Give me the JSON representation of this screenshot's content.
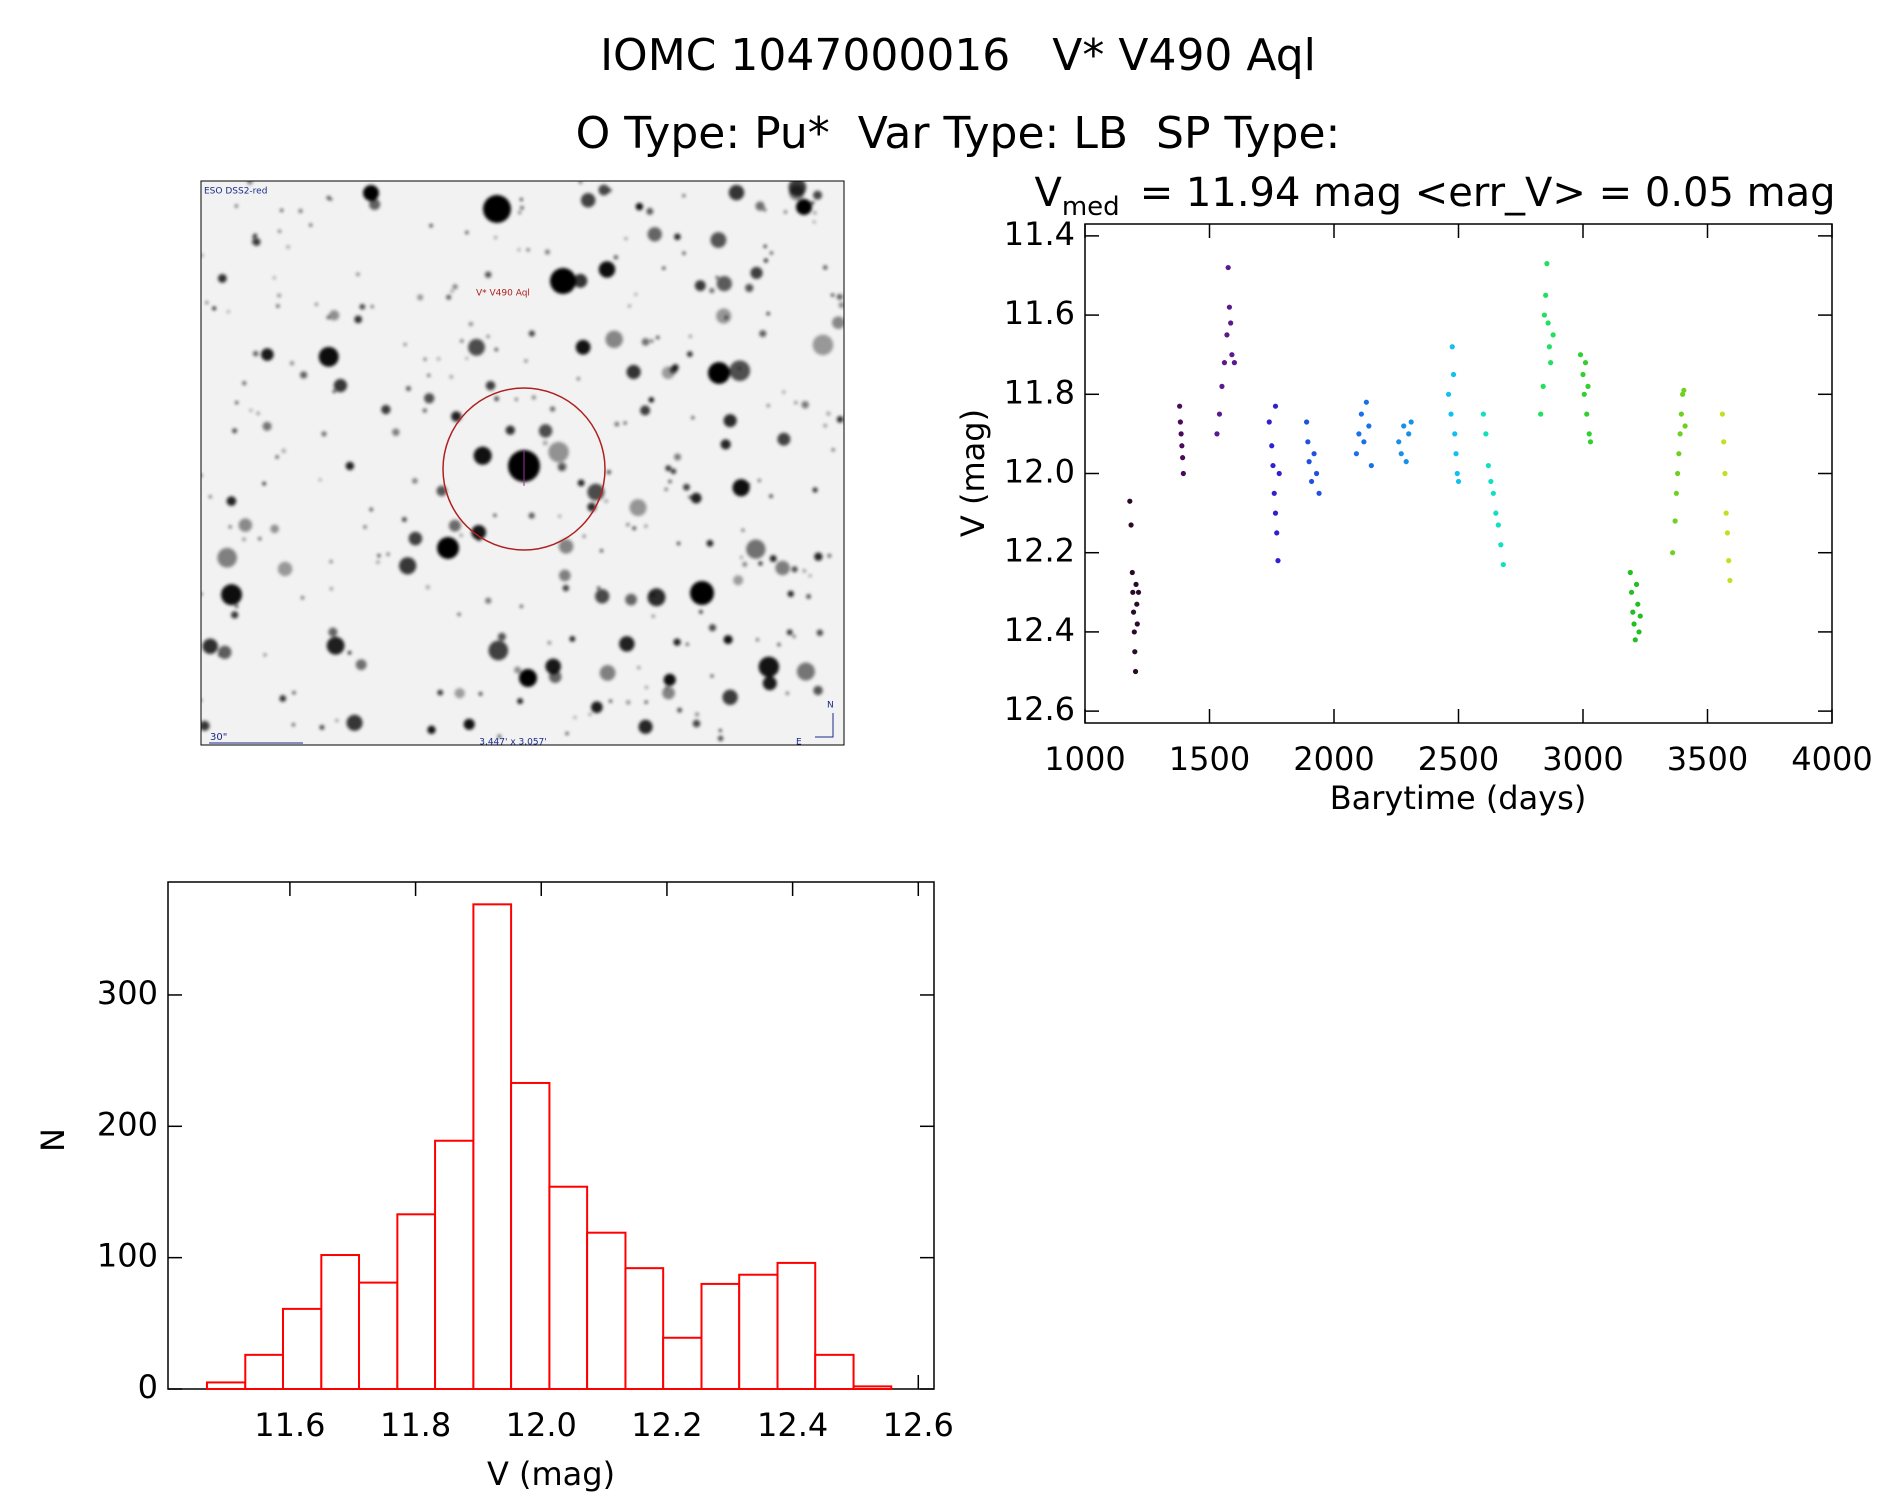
{
  "header": {
    "title": "IOMC 1047000016   V* V490 Aql",
    "subtitle": "O Type: Pu*  Var Type: LB  SP Type:"
  },
  "finder": {
    "survey": "ESO DSS2-red",
    "target": "V* V490 Aql",
    "scale": "30\"",
    "size": "3.447' x 3.057'",
    "north": "N",
    "east": "E"
  },
  "chart_data": [
    {
      "type": "scatter",
      "title_symbol": "V",
      "title_subscript": "med",
      "title": "= 11.94 mag <err_V> = 0.05 mag",
      "x_label": "Barytime (days)",
      "y_label": "V (mag)",
      "xlim": [
        1000,
        4000
      ],
      "xticks": [
        1000,
        1500,
        2000,
        2500,
        3000,
        3500,
        4000
      ],
      "ylim": [
        12.63,
        11.37
      ],
      "yticks": [
        11.4,
        11.6,
        11.8,
        {
          "value": 12,
          "label": "12.0"
        },
        12.2,
        12.4,
        12.6
      ],
      "series": [
        {
          "color": "#2a0a2a",
          "x": [
            1180,
            1185,
            1190,
            1192,
            1195,
            1198,
            1200,
            1203,
            1205,
            1208,
            1210,
            1215
          ],
          "values": [
            12.07,
            12.13,
            12.25,
            12.3,
            12.35,
            12.4,
            12.45,
            12.5,
            12.28,
            12.33,
            12.38,
            12.3
          ]
        },
        {
          "color": "#4a0a5a",
          "x": [
            1380,
            1383,
            1386,
            1389,
            1392,
            1395
          ],
          "values": [
            11.83,
            11.87,
            11.9,
            11.93,
            11.96,
            12.0
          ]
        },
        {
          "color": "#5a1a8a",
          "x": [
            1530,
            1540,
            1550,
            1560,
            1570,
            1575,
            1580,
            1585,
            1590,
            1600
          ],
          "values": [
            11.9,
            11.85,
            11.78,
            11.72,
            11.65,
            11.48,
            11.58,
            11.62,
            11.7,
            11.72
          ]
        },
        {
          "color": "#3020d0",
          "x": [
            1740,
            1750,
            1755,
            1760,
            1765,
            1765,
            1770,
            1775,
            1780
          ],
          "values": [
            11.87,
            11.93,
            11.98,
            12.05,
            12.1,
            11.83,
            12.15,
            12.22,
            12.0
          ]
        },
        {
          "color": "#2050e0",
          "x": [
            1890,
            1895,
            1900,
            1910,
            1920,
            1930,
            1940
          ],
          "values": [
            11.87,
            11.92,
            11.97,
            12.02,
            11.95,
            12.0,
            12.05
          ]
        },
        {
          "color": "#1a70e8",
          "x": [
            2090,
            2100,
            2110,
            2120,
            2130,
            2140,
            2150
          ],
          "values": [
            11.95,
            11.9,
            11.85,
            11.92,
            11.82,
            11.88,
            11.98
          ]
        },
        {
          "color": "#1890e8",
          "x": [
            2260,
            2270,
            2280,
            2290,
            2300,
            2310
          ],
          "values": [
            11.92,
            11.95,
            11.88,
            11.97,
            11.9,
            11.87
          ]
        },
        {
          "color": "#10c0f0",
          "x": [
            2460,
            2470,
            2475,
            2480,
            2485,
            2490,
            2495,
            2500
          ],
          "values": [
            11.8,
            11.85,
            11.68,
            11.75,
            11.9,
            11.95,
            12.0,
            12.02
          ]
        },
        {
          "color": "#10e0c0",
          "x": [
            2600,
            2610,
            2620,
            2630,
            2640,
            2650,
            2660,
            2670,
            2680
          ],
          "values": [
            11.85,
            11.9,
            11.98,
            12.02,
            12.05,
            12.1,
            12.13,
            12.18,
            12.23
          ]
        },
        {
          "color": "#20e060",
          "x": [
            2830,
            2840,
            2845,
            2850,
            2855,
            2860,
            2865,
            2870,
            2880
          ],
          "values": [
            11.85,
            11.78,
            11.6,
            11.55,
            11.47,
            11.62,
            11.68,
            11.72,
            11.65
          ]
        },
        {
          "color": "#30d030",
          "x": [
            2990,
            3000,
            3005,
            3010,
            3015,
            3020,
            3025,
            3030
          ],
          "values": [
            11.7,
            11.75,
            11.8,
            11.72,
            11.85,
            11.78,
            11.9,
            11.92
          ]
        },
        {
          "color": "#20c020",
          "x": [
            3190,
            3195,
            3200,
            3205,
            3210,
            3215,
            3220,
            3225,
            3230
          ],
          "values": [
            12.25,
            12.3,
            12.35,
            12.38,
            12.42,
            12.28,
            12.33,
            12.4,
            12.36
          ]
        },
        {
          "color": "#70d020",
          "x": [
            3360,
            3370,
            3375,
            3380,
            3385,
            3390,
            3395,
            3400,
            3405,
            3410
          ],
          "values": [
            12.2,
            12.12,
            12.05,
            12.0,
            11.95,
            11.9,
            11.85,
            11.8,
            11.79,
            11.88
          ]
        },
        {
          "color": "#c0e020",
          "x": [
            3560,
            3565,
            3570,
            3575,
            3580,
            3585,
            3590
          ],
          "values": [
            11.85,
            11.92,
            12.0,
            12.1,
            12.15,
            12.22,
            12.27
          ]
        }
      ]
    },
    {
      "type": "histogram",
      "x_label": "V (mag)",
      "y_label": "N",
      "color": "#ff0000",
      "bins": [
        11.468,
        11.529,
        11.589,
        11.65,
        11.71,
        11.771,
        11.831,
        11.892,
        11.952,
        12.013,
        12.073,
        12.134,
        12.194,
        12.255,
        12.315,
        12.376,
        12.436,
        12.497,
        12.557
      ],
      "values": [
        5,
        26,
        61,
        102,
        81,
        133,
        189,
        369,
        233,
        154,
        119,
        92,
        39,
        80,
        87,
        96,
        26,
        2
      ],
      "xlim": [
        11.406,
        12.625
      ],
      "xticks": [
        11.6,
        11.8,
        {
          "value": 12,
          "label": "12.0"
        },
        12.2,
        12.4,
        12.6
      ],
      "ylim": [
        0,
        386
      ],
      "yticks": [
        0,
        100,
        200,
        300
      ]
    }
  ]
}
